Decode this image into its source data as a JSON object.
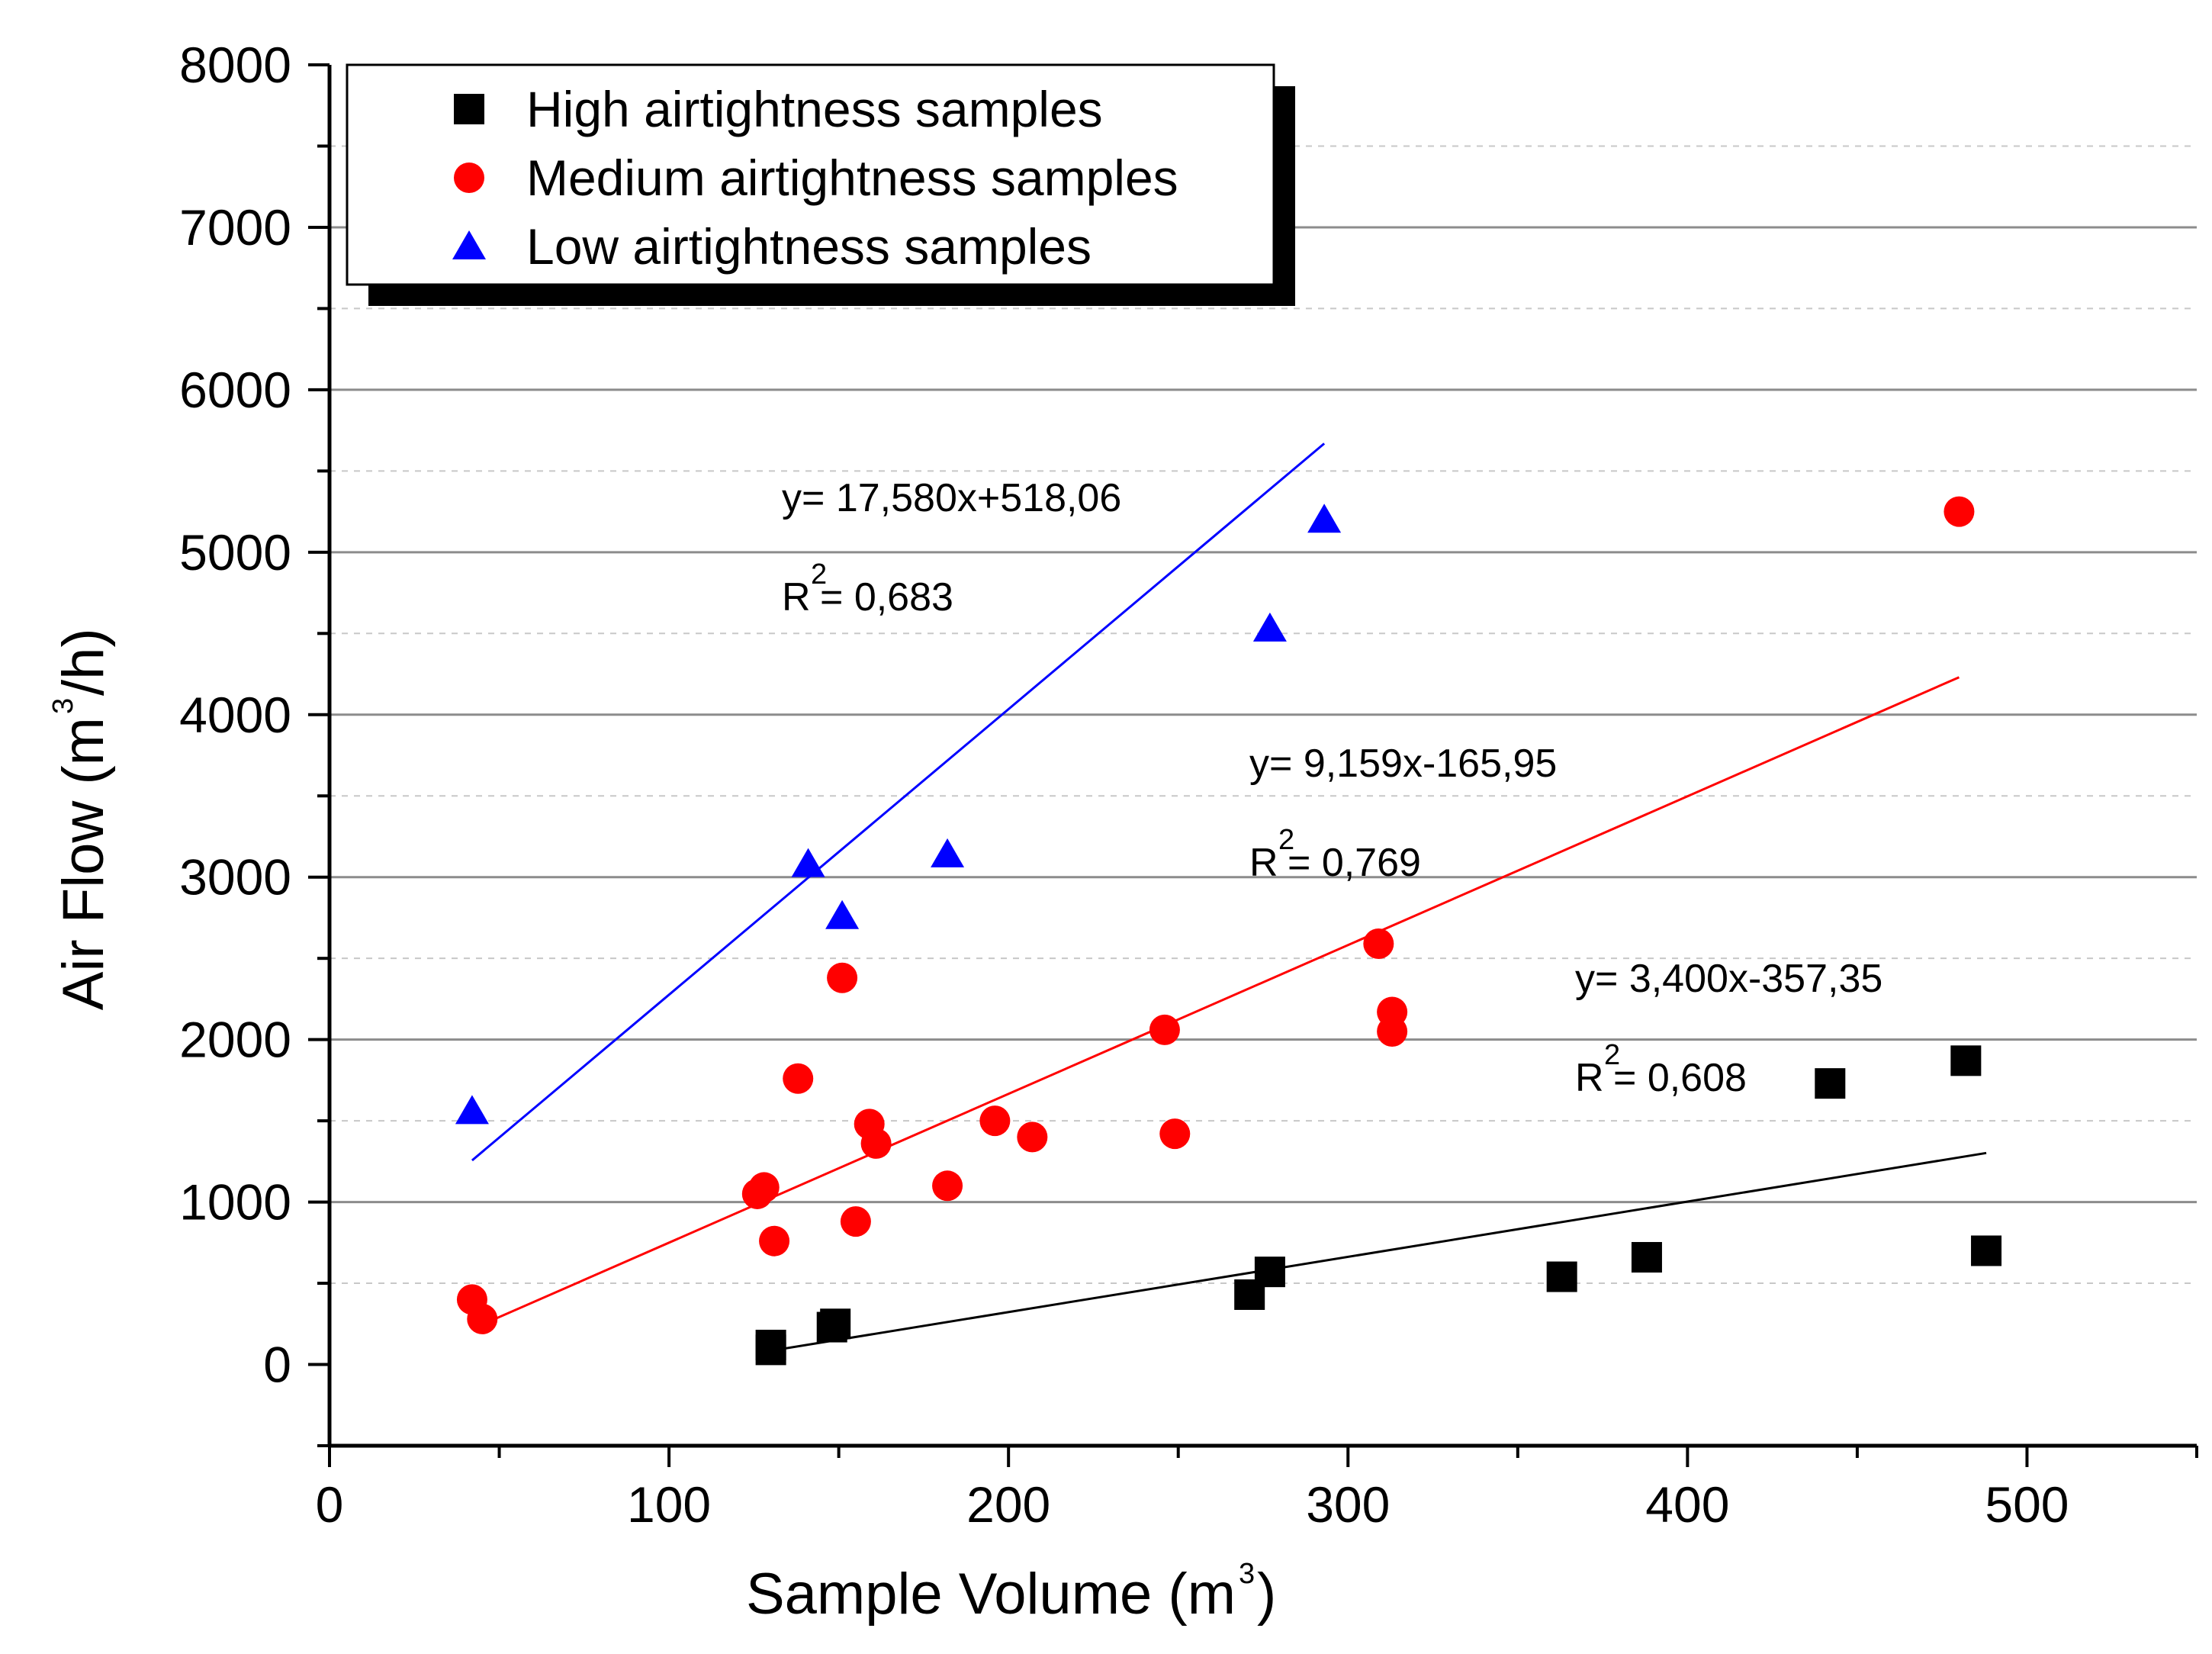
{
  "chart_data": {
    "type": "scatter",
    "title": "",
    "xlabel": "Sample Volume (m",
    "xlabel_sup": "3",
    "xlabel_end": ")",
    "ylabel": "Air Flow (m",
    "ylabel_sup": "3",
    "ylabel_end": "/h)",
    "xlim": [
      0,
      550
    ],
    "ylim": [
      -500,
      8000
    ],
    "xticks": [
      0,
      100,
      200,
      300,
      400,
      500
    ],
    "yticks": [
      0,
      1000,
      2000,
      3000,
      4000,
      5000,
      6000,
      7000,
      8000
    ],
    "grid": "horizontal",
    "legend_position": "top-left",
    "series": [
      {
        "name": "High airtightness samples",
        "marker": "square",
        "color": "#000000",
        "points": [
          [
            130,
            120
          ],
          [
            130,
            90
          ],
          [
            148,
            230
          ],
          [
            149,
            250
          ],
          [
            271,
            430
          ],
          [
            277,
            570
          ],
          [
            363,
            540
          ],
          [
            388,
            660
          ],
          [
            442,
            1730
          ],
          [
            482,
            1870
          ],
          [
            488,
            700
          ]
        ],
        "fit": {
          "slope": 3.4,
          "intercept": -357.35,
          "x_range": [
            130,
            488
          ],
          "equation": "y= 3,400x-357,35",
          "r2_prefix": "R",
          "r2_sup": "2",
          "r2_value": "= 0,608"
        }
      },
      {
        "name": "Medium airtightness samples",
        "marker": "circle",
        "color": "#ff0000",
        "points": [
          [
            42,
            400
          ],
          [
            45,
            280
          ],
          [
            126,
            1050
          ],
          [
            128,
            1090
          ],
          [
            131,
            760
          ],
          [
            138,
            1760
          ],
          [
            151,
            2380
          ],
          [
            155,
            880
          ],
          [
            159,
            1480
          ],
          [
            161,
            1360
          ],
          [
            182,
            1100
          ],
          [
            196,
            1500
          ],
          [
            207,
            1400
          ],
          [
            246,
            2060
          ],
          [
            249,
            1420
          ],
          [
            309,
            2590
          ],
          [
            313,
            2170
          ],
          [
            313,
            2050
          ],
          [
            480,
            5250
          ]
        ],
        "fit": {
          "slope": 9.159,
          "intercept": -165.95,
          "x_range": [
            45,
            480
          ],
          "equation": "y= 9,159x-165,95",
          "r2_prefix": "R",
          "r2_sup": "2",
          "r2_value": "= 0,769"
        }
      },
      {
        "name": "Low airtightness samples",
        "marker": "triangle",
        "color": "#0000ff",
        "points": [
          [
            42,
            1560
          ],
          [
            141,
            3080
          ],
          [
            151,
            2760
          ],
          [
            182,
            3140
          ],
          [
            277,
            4530
          ],
          [
            293,
            5200
          ]
        ],
        "fit": {
          "slope": 17.58,
          "intercept": 518.06,
          "x_range": [
            42,
            293
          ],
          "equation": "y= 17,580x+518,06",
          "r2_prefix": "R",
          "r2_sup": "2",
          "r2_value": "= 0,683"
        }
      }
    ]
  }
}
